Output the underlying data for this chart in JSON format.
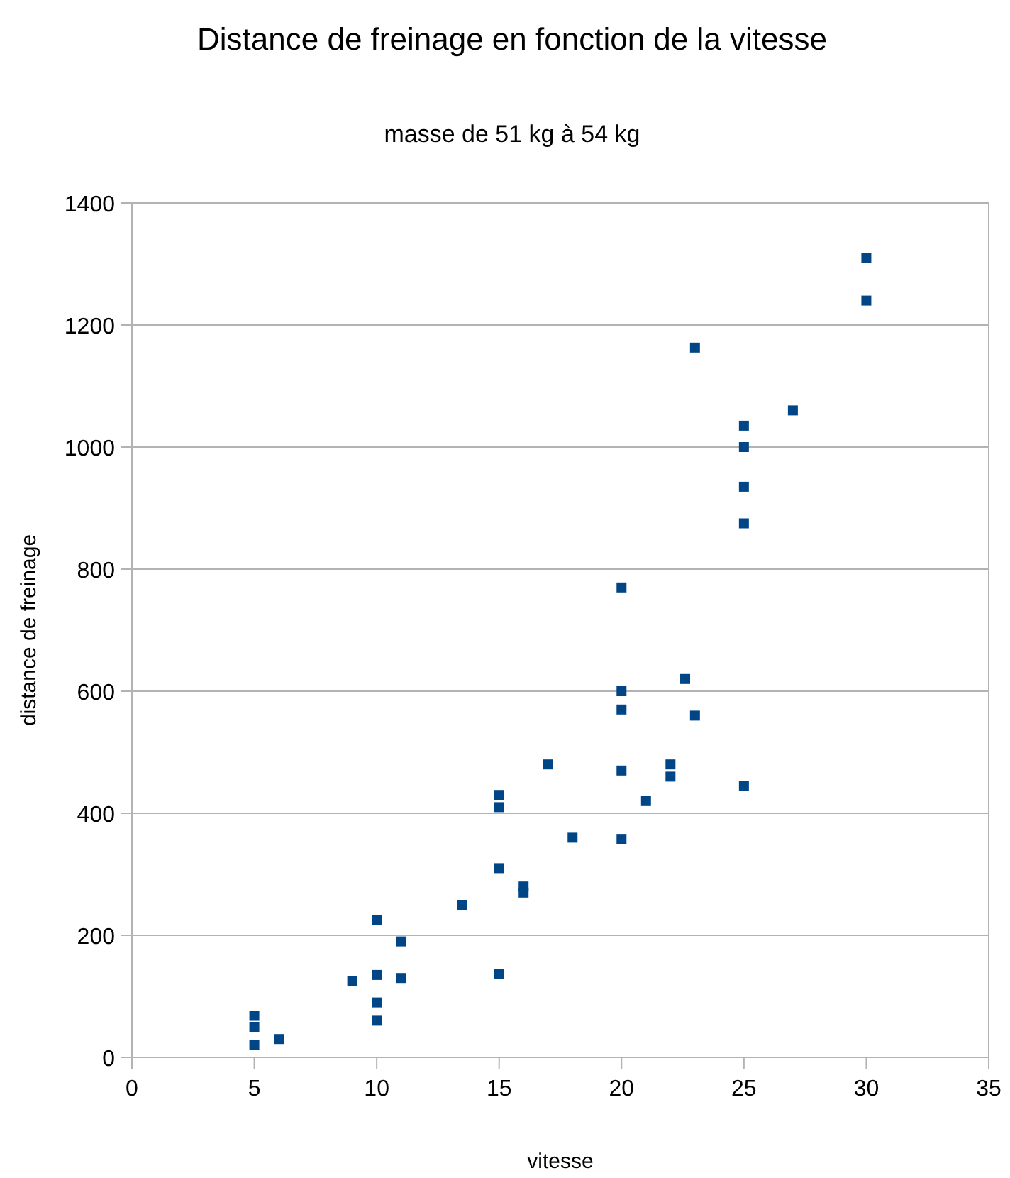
{
  "chart_data": {
    "type": "scatter",
    "title": "Distance de freinage en fonction de la vitesse",
    "subtitle": "masse de 51 kg à 54 kg",
    "xlabel": "vitesse",
    "ylabel": "distance de freinage",
    "x": [
      5,
      5,
      5,
      6,
      9,
      10,
      10,
      10,
      10,
      11,
      11,
      13.5,
      15,
      15,
      15,
      15,
      16,
      16,
      17,
      18,
      20,
      20,
      20,
      20,
      20,
      21,
      22,
      22,
      22.6,
      23,
      23,
      25,
      25,
      25,
      25,
      25,
      27,
      30,
      30
    ],
    "series": [
      {
        "color": "#004586",
        "values": [
          68,
          50,
          20,
          30,
          125,
          225,
          135,
          90,
          60,
          190,
          130,
          250,
          430,
          410,
          310,
          137,
          280,
          270,
          480,
          360,
          770,
          600,
          570,
          470,
          358,
          420,
          480,
          460,
          620,
          1163,
          560,
          1035,
          1000,
          935,
          875,
          445,
          1060,
          1310,
          1240
        ]
      }
    ],
    "xlim": [
      0,
      35
    ],
    "xticks": [
      0,
      5,
      10,
      15,
      20,
      25,
      30,
      35
    ],
    "ylim": [
      0,
      1400
    ],
    "yticks": [
      0,
      200,
      400,
      600,
      800,
      1000,
      1200,
      1400
    ],
    "grid": "y",
    "marker": "square"
  }
}
